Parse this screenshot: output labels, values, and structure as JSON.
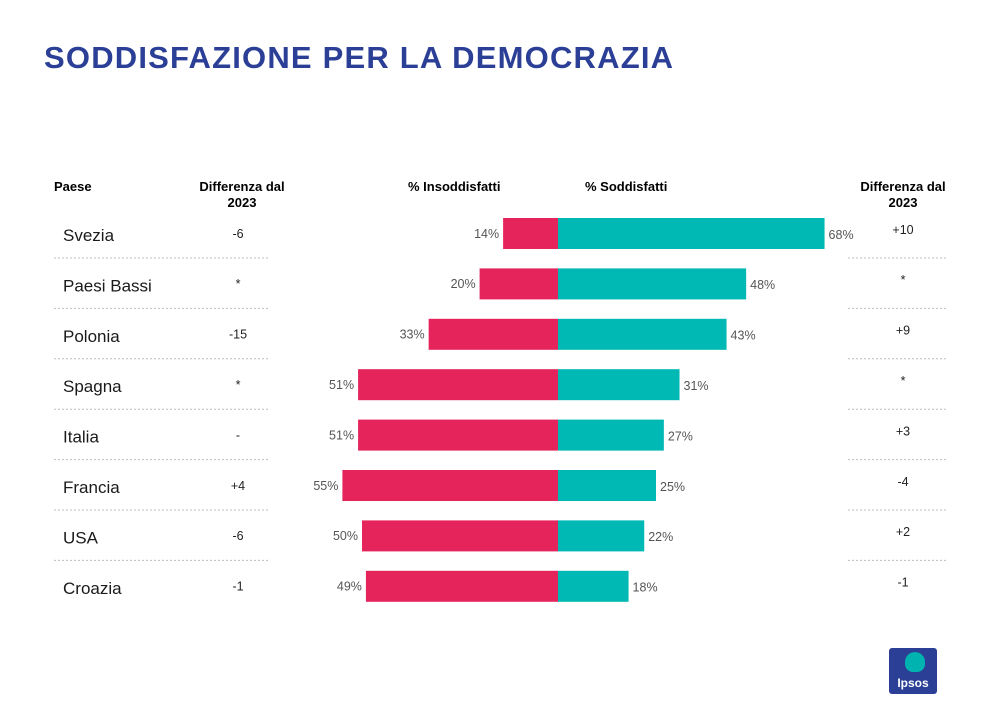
{
  "title": "SODDISFAZIONE PER LA DEMOCRAZIA",
  "headers": {
    "paese": "Paese",
    "diff_left": "Differenza dal 2023",
    "insoddisfatti": "% Insoddisfatti",
    "soddisfatti": "% Soddisfatti",
    "diff_right": "Differenza dal 2023"
  },
  "colors": {
    "insoddisfatti": "#e4245b",
    "soddisfatti": "#00b8b4",
    "title": "#2b3f96"
  },
  "logo_text": "Ipsos",
  "chart_data": {
    "type": "bar",
    "orientation": "diverging-horizontal",
    "title": "SODDISFAZIONE PER LA DEMOCRAZIA",
    "categories": [
      "Svezia",
      "Paesi Bassi",
      "Polonia",
      "Spagna",
      "Italia",
      "Francia",
      "USA",
      "Croazia"
    ],
    "series": [
      {
        "name": "% Insoddisfatti",
        "values": [
          14,
          20,
          33,
          51,
          51,
          55,
          50,
          49
        ],
        "direction": "left"
      },
      {
        "name": "% Soddisfatti",
        "values": [
          68,
          48,
          43,
          31,
          27,
          25,
          22,
          18
        ],
        "direction": "right"
      }
    ],
    "diff_insoddisfatti": [
      "-6",
      "*",
      "-15",
      "*",
      "-",
      "+4",
      "-6",
      "-1"
    ],
    "diff_soddisfatti": [
      "+10",
      "*",
      "+9",
      "*",
      "+3",
      "-4",
      "+2",
      "-1"
    ],
    "value_format": "{v}%"
  }
}
